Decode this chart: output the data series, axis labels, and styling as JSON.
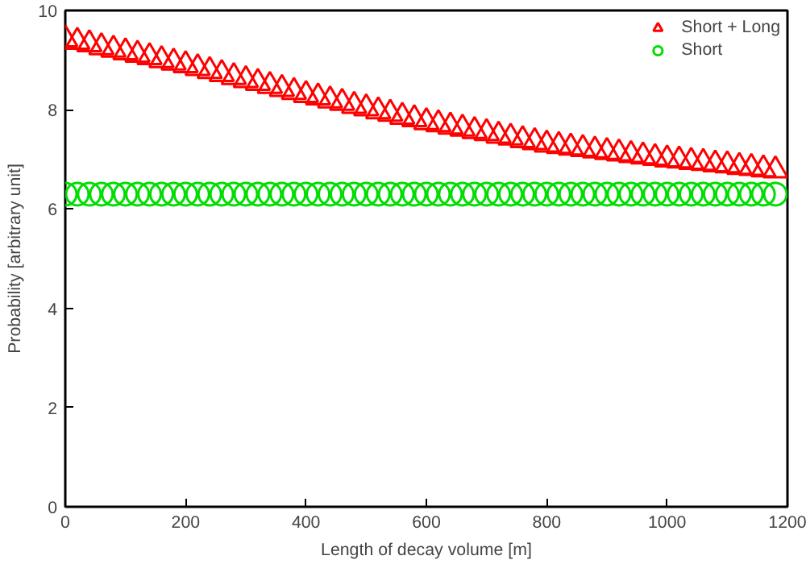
{
  "chart_data": {
    "type": "scatter",
    "xlabel": "Length of decay volume [m]",
    "ylabel": "Probability [arbitrary unit]",
    "x": [
      0,
      20,
      40,
      60,
      80,
      100,
      120,
      140,
      160,
      180,
      200,
      220,
      240,
      260,
      280,
      300,
      320,
      340,
      360,
      380,
      400,
      420,
      440,
      460,
      480,
      500,
      520,
      540,
      560,
      580,
      600,
      620,
      640,
      660,
      680,
      700,
      720,
      740,
      760,
      780,
      800,
      820,
      840,
      860,
      880,
      900,
      920,
      940,
      960,
      980,
      1000,
      1020,
      1040,
      1060,
      1080,
      1100,
      1120,
      1140,
      1160,
      1180
    ],
    "series": [
      {
        "name": "Short + Long",
        "color": "#ff0000",
        "marker": "triangle",
        "values": [
          9.42,
          9.37,
          9.32,
          9.26,
          9.21,
          9.16,
          9.11,
          9.06,
          9.0,
          8.95,
          8.9,
          8.84,
          8.78,
          8.72,
          8.66,
          8.6,
          8.54,
          8.48,
          8.42,
          8.36,
          8.3,
          8.25,
          8.19,
          8.14,
          8.08,
          8.03,
          7.97,
          7.92,
          7.86,
          7.81,
          7.75,
          7.71,
          7.66,
          7.62,
          7.57,
          7.53,
          7.48,
          7.44,
          7.39,
          7.35,
          7.3,
          7.27,
          7.24,
          7.21,
          7.18,
          7.15,
          7.12,
          7.09,
          7.06,
          7.03,
          7.0,
          6.98,
          6.95,
          6.93,
          6.9,
          6.88,
          6.85,
          6.83,
          6.8,
          6.78
        ]
      },
      {
        "name": "Short",
        "color": "#00dd00",
        "marker": "circle",
        "values": [
          6.3,
          6.3,
          6.3,
          6.3,
          6.3,
          6.3,
          6.3,
          6.3,
          6.3,
          6.3,
          6.3,
          6.3,
          6.3,
          6.3,
          6.3,
          6.3,
          6.3,
          6.3,
          6.3,
          6.3,
          6.3,
          6.3,
          6.3,
          6.3,
          6.3,
          6.3,
          6.3,
          6.3,
          6.3,
          6.3,
          6.3,
          6.3,
          6.3,
          6.3,
          6.3,
          6.3,
          6.3,
          6.3,
          6.3,
          6.3,
          6.3,
          6.3,
          6.3,
          6.3,
          6.3,
          6.3,
          6.3,
          6.3,
          6.3,
          6.3,
          6.3,
          6.3,
          6.3,
          6.3,
          6.3,
          6.3,
          6.3,
          6.3,
          6.3,
          6.3
        ]
      }
    ],
    "xlim": [
      0,
      1200
    ],
    "xticks": [
      0,
      200,
      400,
      600,
      800,
      1000,
      1200
    ],
    "ylim": [
      0,
      10
    ],
    "yticks": [
      0,
      2,
      4,
      6,
      8,
      10
    ],
    "grid": false,
    "legend": "top right"
  }
}
